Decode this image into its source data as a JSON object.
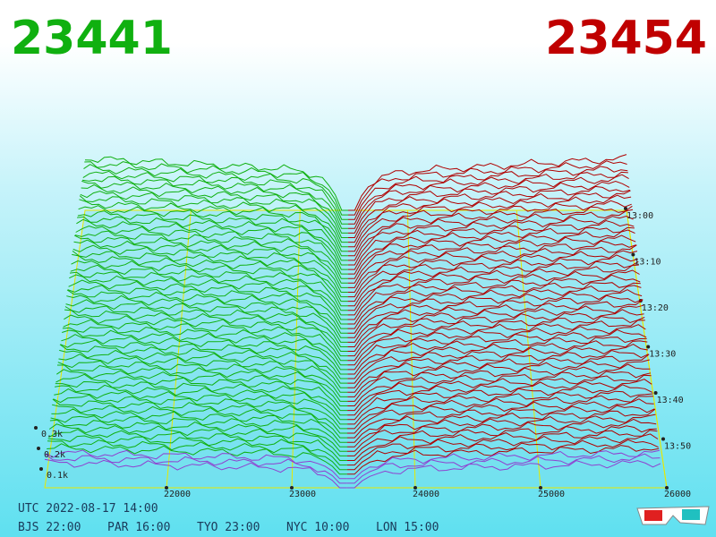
{
  "header": {
    "bid": "23441",
    "ask": "23454"
  },
  "axis": {
    "price_ticks": [
      "22000",
      "23000",
      "24000",
      "25000",
      "26000"
    ],
    "depth_ticks": [
      "0.3k",
      "0.2k",
      "0.1k"
    ],
    "time_ticks": [
      "13:00",
      "13:10",
      "13:20",
      "13:30",
      "13:40",
      "13:50"
    ]
  },
  "footer": {
    "utc": "UTC 2022-08-17 14:00",
    "cities": [
      "BJS 22:00",
      "PAR 16:00",
      "TYO 23:00",
      "NYC 10:00",
      "LON 15:00"
    ]
  }
}
